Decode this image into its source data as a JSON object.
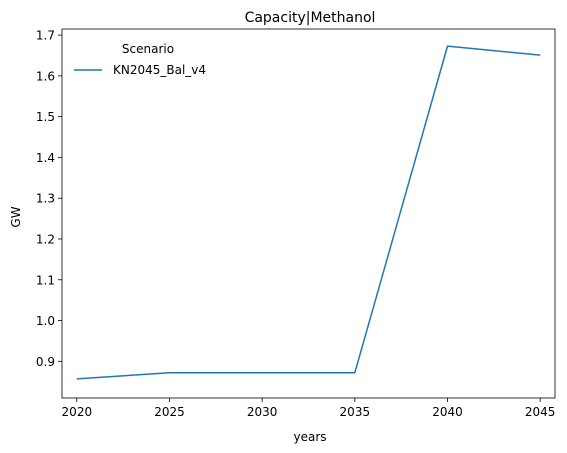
{
  "chart_data": {
    "type": "line",
    "title": "Capacity|Methanol",
    "xlabel": "years",
    "ylabel": "GW",
    "x": [
      2020,
      2025,
      2030,
      2035,
      2040,
      2045
    ],
    "x_ticks": [
      2020,
      2025,
      2030,
      2035,
      2040,
      2045
    ],
    "y_ticks": [
      0.9,
      1.0,
      1.1,
      1.2,
      1.3,
      1.4,
      1.5,
      1.6,
      1.7
    ],
    "xlim": [
      2019.2,
      2045.8
    ],
    "ylim": [
      0.81,
      1.715
    ],
    "grid": false,
    "legend": {
      "title": "Scenario",
      "placement": "top-left"
    },
    "series": [
      {
        "name": "KN2045_Bal_v4",
        "color": "#1f77b4",
        "values": [
          0.857,
          0.872,
          0.872,
          0.872,
          1.673,
          1.651
        ]
      }
    ]
  }
}
